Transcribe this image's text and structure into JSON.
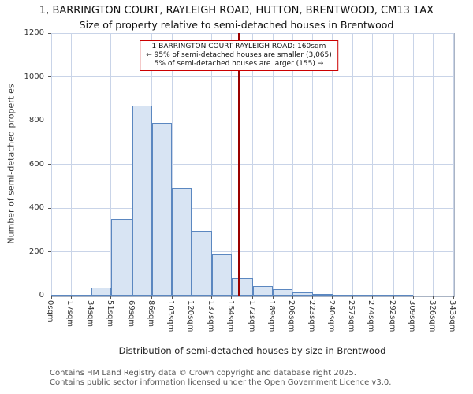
{
  "title": "1, BARRINGTON COURT, RAYLEIGH ROAD, HUTTON, BRENTWOOD, CM13 1AX",
  "subtitle": "Size of property relative to semi-detached houses in Brentwood",
  "chart_data": {
    "type": "bar",
    "title": "Size of property relative to semi-detached houses in Brentwood",
    "xlabel": "Distribution of semi-detached houses by size in Brentwood",
    "ylabel": "Number of semi-detached properties",
    "ylim": [
      0,
      1200
    ],
    "y_ticks": [
      0,
      200,
      400,
      600,
      800,
      1000,
      1200
    ],
    "bin_edges_sqm": [
      0,
      17,
      34,
      51,
      69,
      86,
      103,
      120,
      137,
      154,
      172,
      189,
      206,
      223,
      240,
      257,
      274,
      292,
      309,
      326,
      343
    ],
    "x_tick_labels": [
      "0sqm",
      "17sqm",
      "34sqm",
      "51sqm",
      "69sqm",
      "86sqm",
      "103sqm",
      "120sqm",
      "137sqm",
      "154sqm",
      "172sqm",
      "189sqm",
      "206sqm",
      "223sqm",
      "240sqm",
      "257sqm",
      "274sqm",
      "292sqm",
      "309sqm",
      "326sqm",
      "343sqm"
    ],
    "values": [
      5,
      5,
      35,
      350,
      870,
      790,
      490,
      295,
      190,
      80,
      45,
      30,
      15,
      8,
      4,
      3,
      2,
      5,
      0,
      0
    ],
    "marker_value_sqm": 160,
    "marker_color": "#990000",
    "bar_fill": "#d8e4f3",
    "bar_border": "#5b87c0",
    "grid_color": "#c9d4e8",
    "grid": true,
    "legend": "none"
  },
  "annotation": {
    "line1": "1 BARRINGTON COURT RAYLEIGH ROAD: 160sqm",
    "line2": "← 95% of semi-detached houses are smaller (3,065)",
    "line3": "5% of semi-detached houses are larger (155) →"
  },
  "footer": {
    "line1": "Contains HM Land Registry data © Crown copyright and database right 2025.",
    "line2": "Contains public sector information licensed under the Open Government Licence v3.0."
  }
}
